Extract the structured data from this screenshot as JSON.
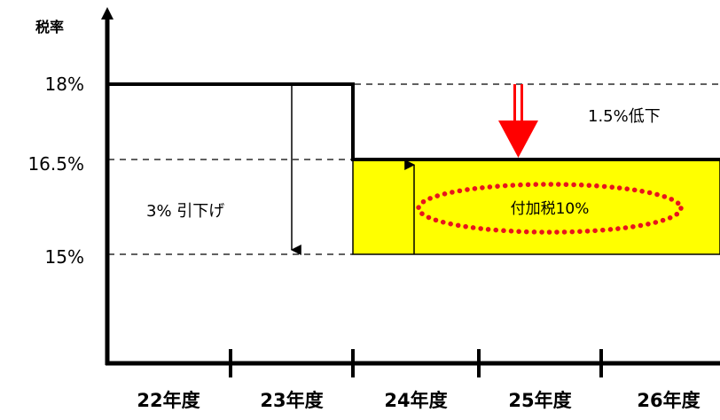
{
  "y_axis_label": "税率",
  "rate_labels": {
    "r18": "18%",
    "r165": "16.5%",
    "r15": "15%"
  },
  "fiscal_years": [
    "22年度",
    "23年度",
    "24年度",
    "25年度",
    "26年度"
  ],
  "annotations": {
    "cut": "3% 引下げ",
    "decrease": "1.5%低下",
    "surtax": "付加税10%"
  },
  "chart_data": {
    "type": "line",
    "ylabel": "税率",
    "x": [
      "22年度",
      "23年度",
      "24年度",
      "25年度",
      "26年度"
    ],
    "series": [
      {
        "values": [
          18,
          18,
          16.5,
          16.5,
          16.5
        ]
      }
    ],
    "reference_levels": [
      18,
      16.5,
      15
    ],
    "shaded_band": {
      "from": 15,
      "to": 16.5,
      "label": "付加税10%"
    }
  },
  "colors": {
    "band_fill": "#ffff00",
    "arrow_red": "#ff0000",
    "dotted_ellipse": "#e8141c"
  }
}
